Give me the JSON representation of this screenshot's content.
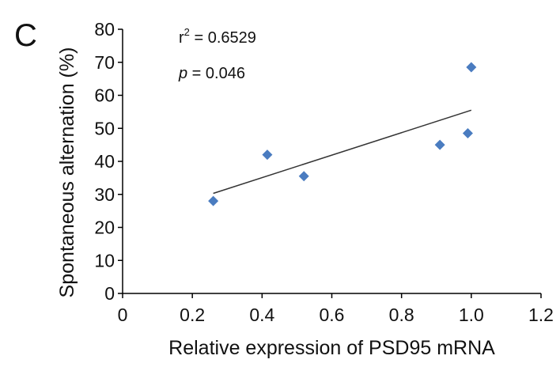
{
  "panel_label": "C",
  "chart_data": {
    "type": "scatter",
    "xlabel": "Relative expression of PSD95 mRNA",
    "ylabel": "Spontaneous alternation (%)",
    "xlim": [
      0,
      1.2
    ],
    "ylim": [
      0,
      80
    ],
    "xticks": [
      "0",
      "0.2",
      "0.4",
      "0.6",
      "0.8",
      "1.0",
      "1.2"
    ],
    "yticks": [
      "0",
      "10",
      "20",
      "30",
      "40",
      "50",
      "60",
      "70",
      "80"
    ],
    "grid": false,
    "points": [
      {
        "x": 0.26,
        "y": 28
      },
      {
        "x": 0.415,
        "y": 42
      },
      {
        "x": 0.52,
        "y": 35.5
      },
      {
        "x": 0.91,
        "y": 45
      },
      {
        "x": 0.99,
        "y": 48.5
      },
      {
        "x": 1.0,
        "y": 68.5
      }
    ],
    "trendline": {
      "x": [
        0.26,
        1.0
      ],
      "y": [
        30.3,
        55.5
      ]
    },
    "annotations": {
      "r2_prefix": "r",
      "r2_sup": "2",
      "r2_value": " = 0.6529",
      "p_symbol": "p",
      "p_value": " = 0.046"
    },
    "colors": {
      "marker": "#4a7cc0",
      "trendline": "#333333",
      "axis": "#000000"
    }
  }
}
